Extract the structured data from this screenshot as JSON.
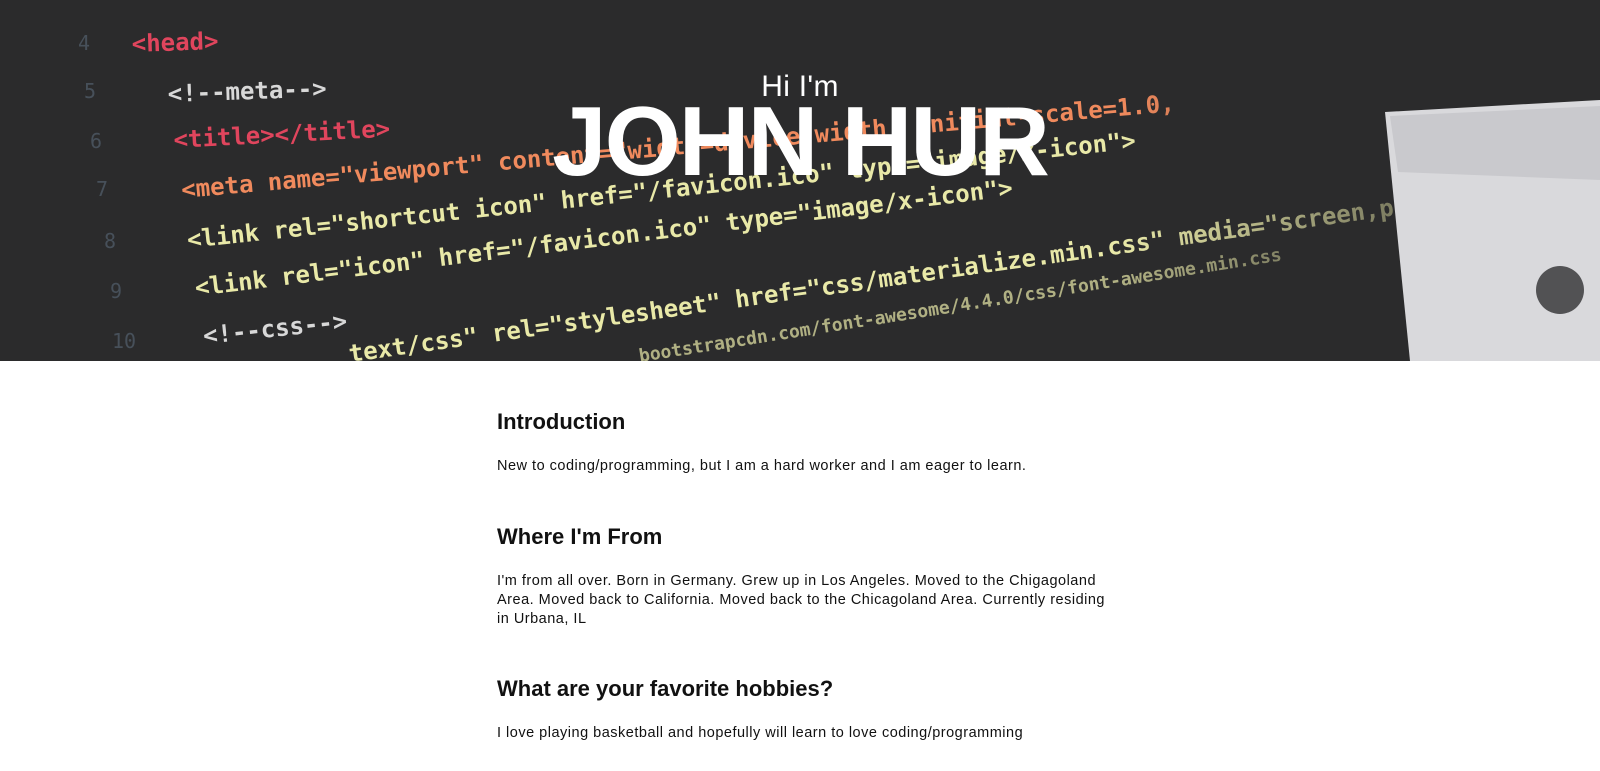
{
  "hero": {
    "greeting": "Hi I'm",
    "name": "JOHN HUR",
    "background_code_lines": [
      "<head>",
      "<!--meta-->",
      "<title></title>",
      "<meta name=\"viewport\" content=\"width=device-width, initial-scale=1.0,",
      "<link rel=\"shortcut icon\" href=\"/favicon.ico\" type=\"image/x-icon\">",
      "<link rel=\"icon\" href=\"/favicon.ico\" type=\"image/x-icon\">",
      "<!--css-->",
      "text/css\" rel=\"stylesheet\" href=\"css/materialize.min.css\" media=\"screen,projection\"",
      "bootstrapcdn.com/font-awesome/4.4.0/css/font-awesome.min.css"
    ]
  },
  "sections": [
    {
      "title": "Introduction",
      "text": "New to coding/programming, but I am a hard worker and I am eager to learn."
    },
    {
      "title": "Where I'm From",
      "text": "I'm from all over. Born in Germany. Grew up in Los Angeles. Moved to the Chigagoland Area. Moved back to California. Moved back to the Chicagoland Area. Currently residing in Urbana, IL"
    },
    {
      "title": "What are your favorite hobbies?",
      "text": "I love playing basketball and hopefully will learn to love coding/programming"
    }
  ],
  "colors": {
    "hero_bg": "#2b2b2c",
    "code_tag": "#e0455d",
    "code_attr": "#f08a5d",
    "code_string": "#e9e9a8",
    "code_comment": "#d8d8d8"
  }
}
